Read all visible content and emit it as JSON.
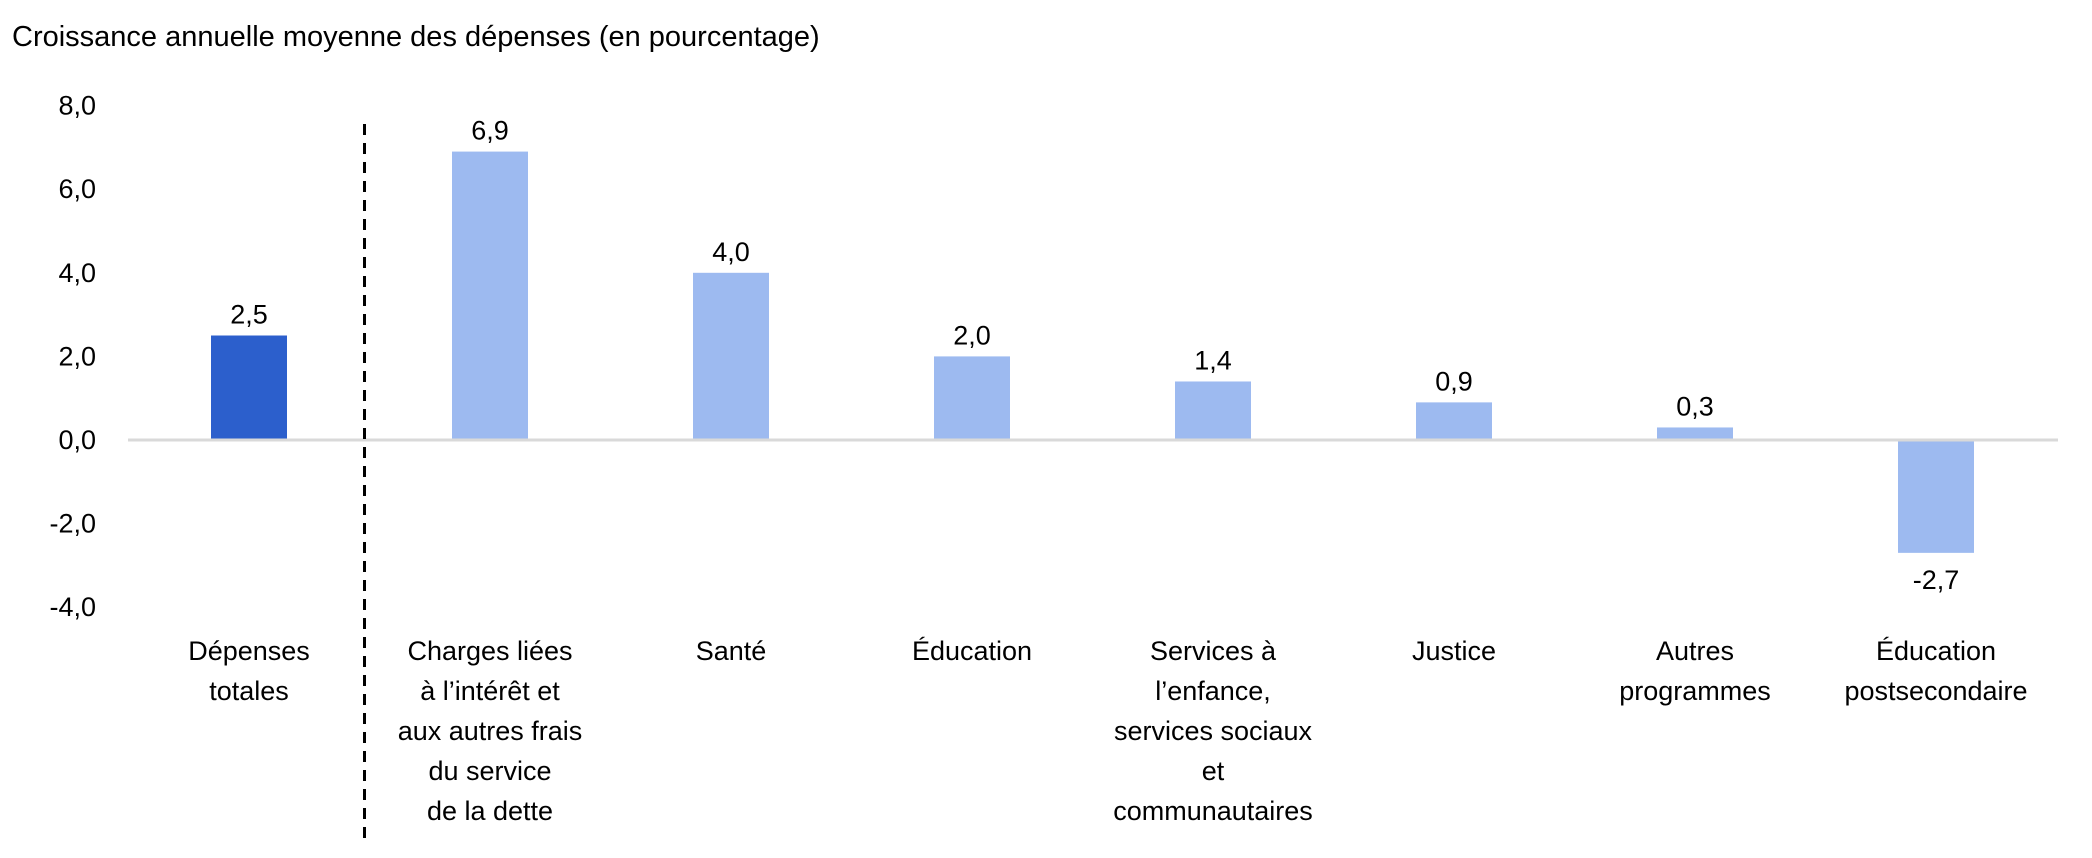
{
  "chart_data": {
    "type": "bar",
    "title": "Croissance annuelle moyenne des dépenses (en pourcentage)",
    "xlabel": "",
    "ylabel": "",
    "ylim": [
      -4,
      8
    ],
    "yticks": [
      8,
      6,
      4,
      2,
      0,
      -2,
      -4
    ],
    "ytick_labels": [
      "8,0",
      "6,0",
      "4,0",
      "2,0",
      "0,0",
      "-2,0",
      "-4,0"
    ],
    "grid": false,
    "legend": "none",
    "categories": [
      [
        "Dépenses",
        "totales"
      ],
      [
        "Charges liées",
        "à l’intérêt et",
        "aux autres frais",
        "du service",
        "de la dette"
      ],
      [
        "Santé"
      ],
      [
        "Éducation"
      ],
      [
        "Services à",
        "l’enfance,",
        "services sociaux",
        "et",
        "communautaires"
      ],
      [
        "Justice"
      ],
      [
        "Autres",
        "programmes"
      ],
      [
        "Éducation",
        "postsecondaire"
      ]
    ],
    "values": [
      2.5,
      6.9,
      4.0,
      2.0,
      1.4,
      0.9,
      0.3,
      -2.7
    ],
    "value_labels": [
      "2,5",
      "6,9",
      "4,0",
      "2,0",
      "1,4",
      "0,9",
      "0,3",
      "-2,7"
    ],
    "colors": {
      "highlight": "#2c5fcc",
      "default": "#9dbaf0",
      "axis": "#d9d9d9",
      "divider": "#000000"
    },
    "highlight_index": 0,
    "divider_after_index": 0
  }
}
